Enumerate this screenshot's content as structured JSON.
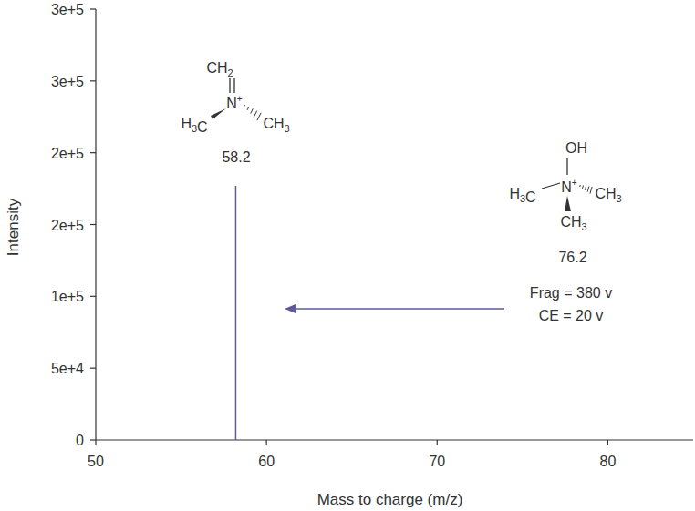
{
  "chart_data": {
    "type": "stem",
    "x_label": "Mass to charge (m/z)",
    "y_label": "Intensity",
    "x": [
      58.2
    ],
    "values": [
      177000
    ],
    "color": "#5e5a9c",
    "xlim": [
      50,
      85
    ],
    "xticks": [
      50,
      60,
      70,
      80
    ],
    "ylim": [
      0,
      300000
    ],
    "yticks": [
      0,
      {
        "value": 50000,
        "label": "5e+4"
      },
      {
        "value": 100000,
        "label": "1e+5"
      },
      {
        "value": 150000,
        "label": "2e+5"
      },
      {
        "value": 200000,
        "label": "2e+5"
      },
      {
        "value": 250000,
        "label": "3e+5"
      },
      {
        "value": 300000,
        "label": "3e+5"
      }
    ],
    "grid": false,
    "annotations": [
      {
        "text": "58.2"
      },
      {
        "text": "76.2"
      },
      {
        "text": "Frag = 380 v"
      },
      {
        "text": "CE = 20 v"
      }
    ],
    "structures": [
      {
        "atoms": [
          "CH2",
          "N+",
          "H3C",
          "CH3"
        ]
      },
      {
        "atoms": [
          "OH",
          "N+",
          "H3C",
          "CH3",
          "CH3"
        ]
      }
    ]
  }
}
